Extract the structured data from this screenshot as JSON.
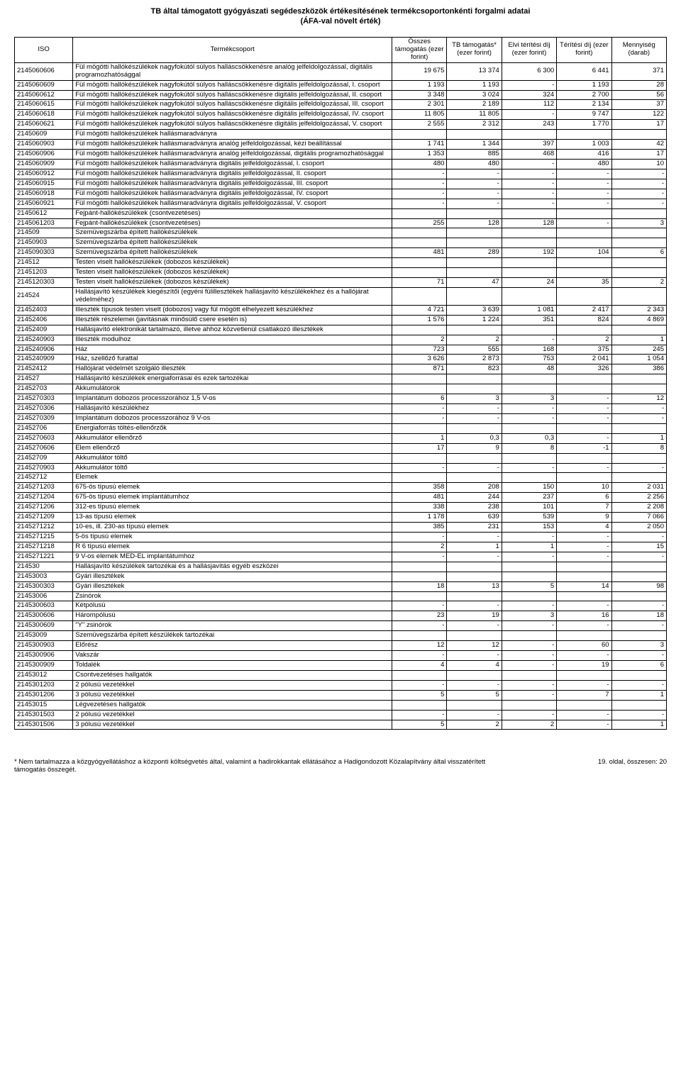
{
  "title": "TB által támogatott gyógyászati segédeszközök értékesítésének termékcsoportonkénti forgalmi adatai",
  "subtitle": "(ÁFA-val növelt érték)",
  "columns": [
    "ISO",
    "Termékcsoport",
    "Összes támogatás (ezer forint)",
    "TB támogatás* (ezer forint)",
    "Elvi térítési díj (ezer forint)",
    "Térítési díj (ezer forint)",
    "Mennyiség (darab)"
  ],
  "rows": [
    [
      "2145060606",
      "Fül mögötti hallókészülékek nagyfokútól súlyos halláscsökkenésre analóg jelfeldolgozással, digitális programozhatósággal",
      "19 675",
      "13 374",
      "6 300",
      "6 441",
      "371"
    ],
    [
      "2145060609",
      "Fül mögötti hallókészülékek nagyfokútól súlyos halláscsökkenésre digitális jelfeldolgozással, I. csoport",
      "1 193",
      "1 193",
      "-",
      "1 193",
      "28"
    ],
    [
      "2145060612",
      "Fül mögötti hallókészülékek nagyfokútól súlyos halláscsökkenésre digitális jelfeldolgozással, II. csoport",
      "3 348",
      "3 024",
      "324",
      "2 700",
      "56"
    ],
    [
      "2145060615",
      "Fül mögötti hallókészülékek nagyfokútól súlyos halláscsökkenésre digitális jelfeldolgozással, III. csoport",
      "2 301",
      "2 189",
      "112",
      "2 134",
      "37"
    ],
    [
      "2145060618",
      "Fül mögötti hallókészülékek nagyfokútól súlyos halláscsökkenésre digitális jelfeldolgozással, IV. csoport",
      "11 805",
      "11 805",
      "-",
      "9 747",
      "122"
    ],
    [
      "2145060621",
      "Fül mögötti hallókészülékek nagyfokútól súlyos halláscsökkenésre digitális jelfeldolgozással, V. csoport",
      "2 555",
      "2 312",
      "243",
      "1 770",
      "17"
    ],
    [
      "21450609",
      "Fül mögötti hallókészülékek hallásmaradványra",
      "",
      "",
      "",
      "",
      ""
    ],
    [
      "2145060903",
      "Fül mögötti hallókészülékek hallásmaradványra analóg jelfeldolgozással, kézi beállítással",
      "1 741",
      "1 344",
      "397",
      "1 003",
      "42"
    ],
    [
      "2145060906",
      "Fül mögötti hallókészülékek hallásmaradványra analóg jelfeldolgozással, digitális programozhatósággal",
      "1 353",
      "885",
      "468",
      "416",
      "17"
    ],
    [
      "2145060909",
      "Fül mögötti hallókészülékek hallásmaradványra digitális jelfeldolgozással, I. csoport",
      "480",
      "480",
      "-",
      "480",
      "10"
    ],
    [
      "2145060912",
      "Fül mögötti hallókészülékek hallásmaradványra digitális jelfeldolgozással, II. csoport",
      "-",
      "-",
      "-",
      "-",
      "-"
    ],
    [
      "2145060915",
      "Fül mögötti hallókészülékek hallásmaradványra digitális jelfeldolgozással, III. csoport",
      "-",
      "-",
      "-",
      "-",
      "-"
    ],
    [
      "2145060918",
      "Fül mögötti hallókészülékek hallásmaradványra digitális jelfeldolgozással, IV. csoport",
      "-",
      "-",
      "-",
      "-",
      "-"
    ],
    [
      "2145060921",
      "Fül mögötti hallókészülékek hallásmaradványra digitális jelfeldolgozással, V. csoport",
      "-",
      "-",
      "-",
      "-",
      "-"
    ],
    [
      "21450612",
      "Fejpánt-hallókészülékek (csontvezetéses)",
      "",
      "",
      "",
      "",
      ""
    ],
    [
      "2145061203",
      "Fejpánt-hallókészülékek (csontvezetéses)",
      "255",
      "128",
      "128",
      "-",
      "3"
    ],
    [
      "214509",
      "Szemüvegszárba épített hallókészülékek",
      "",
      "",
      "",
      "",
      ""
    ],
    [
      "21450903",
      "Szemüvegszárba épített hallókészülékek",
      "",
      "",
      "",
      "",
      ""
    ],
    [
      "2145090303",
      "Szemüvegszárba épített hallókészülékek",
      "481",
      "289",
      "192",
      "104",
      "6"
    ],
    [
      "214512",
      "Testen viselt hallókészülékek (dobozos készülékek)",
      "",
      "",
      "",
      "",
      ""
    ],
    [
      "21451203",
      "Testen viselt hallókészülékek (dobozos készülékek)",
      "",
      "",
      "",
      "",
      ""
    ],
    [
      "2145120303",
      "Testen viselt hallókészülékek (dobozos készülékek)",
      "71",
      "47",
      "24",
      "35",
      "2"
    ],
    [
      "214524",
      "Hallásjavító készülékek kiegészítői (egyéni fülillesztékek hallásjavító készülékekhez és a hallójárat védelméhez)",
      "",
      "",
      "",
      "",
      ""
    ],
    [
      "21452403",
      "Illeszték típusok testen viselt (dobozos) vagy fül mögött elhelyezett készülékhez",
      "4 721",
      "3 639",
      "1 081",
      "2 417",
      "2 343"
    ],
    [
      "21452406",
      "Illeszték részelemei (javításnak minősülő csere esetén is)",
      "1 576",
      "1 224",
      "351",
      "824",
      "4 869"
    ],
    [
      "21452409",
      "Hallásjavító elektronikát tartalmazó, illetve ahhoz közvetlenül csatlakozó illesztékek",
      "",
      "",
      "",
      "",
      ""
    ],
    [
      "2145240903",
      "Illeszték modulhoz",
      "2",
      "2",
      "-",
      "2",
      "1"
    ],
    [
      "2145240906",
      "Ház",
      "723",
      "555",
      "168",
      "375",
      "245"
    ],
    [
      "2145240909",
      "Ház, szellőző furattal",
      "3 626",
      "2 873",
      "753",
      "2 041",
      "1 054"
    ],
    [
      "21452412",
      "Hallójárat védelmét szolgáló illeszték",
      "871",
      "823",
      "48",
      "326",
      "386"
    ],
    [
      "214527",
      "Hallásjavító készülékek energiaforrásai és ezek tartozékai",
      "",
      "",
      "",
      "",
      ""
    ],
    [
      "21452703",
      "Akkumulátorok",
      "",
      "",
      "",
      "",
      ""
    ],
    [
      "2145270303",
      "Implantátum dobozos processzorához 1,5 V-os",
      "6",
      "3",
      "3",
      "-",
      "12"
    ],
    [
      "2145270306",
      "Hallásjavító készülékhez",
      "-",
      "-",
      "-",
      "-",
      "-"
    ],
    [
      "2145270309",
      "Implantátum dobozos processzorához 9 V-os",
      "-",
      "-",
      "-",
      "-",
      "-"
    ],
    [
      "21452706",
      "Energiaforrás töltés-ellenőrzők",
      "",
      "",
      "",
      "",
      ""
    ],
    [
      "2145270603",
      "Akkumulátor ellenőrző",
      "1",
      "0,3",
      "0,3",
      "-",
      "1"
    ],
    [
      "2145270606",
      "Elem ellenőrző",
      "17",
      "9",
      "8",
      "-1",
      "8"
    ],
    [
      "21452709",
      "Akkumulátor töltő",
      "",
      "",
      "",
      "",
      ""
    ],
    [
      "2145270903",
      "Akkumulátor töltő",
      "-",
      "-",
      "-",
      "-",
      "-"
    ],
    [
      "21452712",
      "Elemek",
      "",
      "",
      "",
      "",
      ""
    ],
    [
      "2145271203",
      "675-ös típusú elemek",
      "358",
      "208",
      "150",
      "10",
      "2 031"
    ],
    [
      "2145271204",
      "675-ös típusú elemek implantátumhoz",
      "481",
      "244",
      "237",
      "6",
      "2 256"
    ],
    [
      "2145271206",
      "312-es típusú elemek",
      "338",
      "238",
      "101",
      "7",
      "2 208"
    ],
    [
      "2145271209",
      "13-as típusú elemek",
      "1 178",
      "639",
      "539",
      "9",
      "7 066"
    ],
    [
      "2145271212",
      "10-es, ill. 230-as típusú elemek",
      "385",
      "231",
      "153",
      "4",
      "2 050"
    ],
    [
      "2145271215",
      "5-ös típusú elemek",
      "-",
      "-",
      "-",
      "-",
      "-"
    ],
    [
      "2145271218",
      "R 6 típusú elemek",
      "2",
      "1",
      "1",
      "-",
      "15"
    ],
    [
      "2145271221",
      "9 V-os elemek MED-EL implantátumhoz",
      "-",
      "-",
      "-",
      "-",
      "-"
    ],
    [
      "214530",
      "Hallásjavító készülékek tartozékai és a hallásjavítás egyéb eszközei",
      "",
      "",
      "",
      "",
      ""
    ],
    [
      "21453003",
      "Gyári illesztékek",
      "",
      "",
      "",
      "",
      ""
    ],
    [
      "2145300303",
      "Gyári illesztékek",
      "18",
      "13",
      "5",
      "14",
      "98"
    ],
    [
      "21453006",
      "Zsinórok",
      "",
      "",
      "",
      "",
      ""
    ],
    [
      "2145300603",
      "Kétpólusú",
      "-",
      "-",
      "-",
      "-",
      "-"
    ],
    [
      "2145300606",
      "Hárompólusú",
      "23",
      "19",
      "3",
      "16",
      "18"
    ],
    [
      "2145300609",
      "\"Y\"  zsinórok",
      "-",
      "-",
      "-",
      "-",
      "-"
    ],
    [
      "21453009",
      "Szemüvegszárba épített készülékek tartozékai",
      "",
      "",
      "",
      "",
      ""
    ],
    [
      "2145300903",
      "Előrész",
      "12",
      "12",
      "-",
      "60",
      "3"
    ],
    [
      "2145300906",
      "Vakszár",
      "-",
      "-",
      "-",
      "-",
      "-"
    ],
    [
      "2145300909",
      "Toldalék",
      "4",
      "4",
      "-",
      "19",
      "6"
    ],
    [
      "21453012",
      "Csontvezetéses hallgatók",
      "",
      "",
      "",
      "",
      ""
    ],
    [
      "2145301203",
      "2 pólusú vezetékkel",
      "-",
      "-",
      "-",
      "-",
      "-"
    ],
    [
      "2145301206",
      "3 pólusú vezetékkel",
      "5",
      "5",
      "-",
      "7",
      "1"
    ],
    [
      "21453015",
      "Légvezetéses hallgatók",
      "",
      "",
      "",
      "",
      ""
    ],
    [
      "2145301503",
      "2 pólusú vezetékkel",
      "-",
      "-",
      "-",
      "-",
      "-"
    ],
    [
      "2145301506",
      "3 pólusú vezetékkel",
      "5",
      "2",
      "2",
      "-",
      "1"
    ]
  ],
  "footnote_left": "* Nem tartalmazza a közgyógyellátáshoz a központi költségvetés által, valamint a hadirokkantak ellátásához a Hadigondozott Közalapítvány által visszatérített támogatás összegét.",
  "footnote_right": "19. oldal, összesen: 20"
}
